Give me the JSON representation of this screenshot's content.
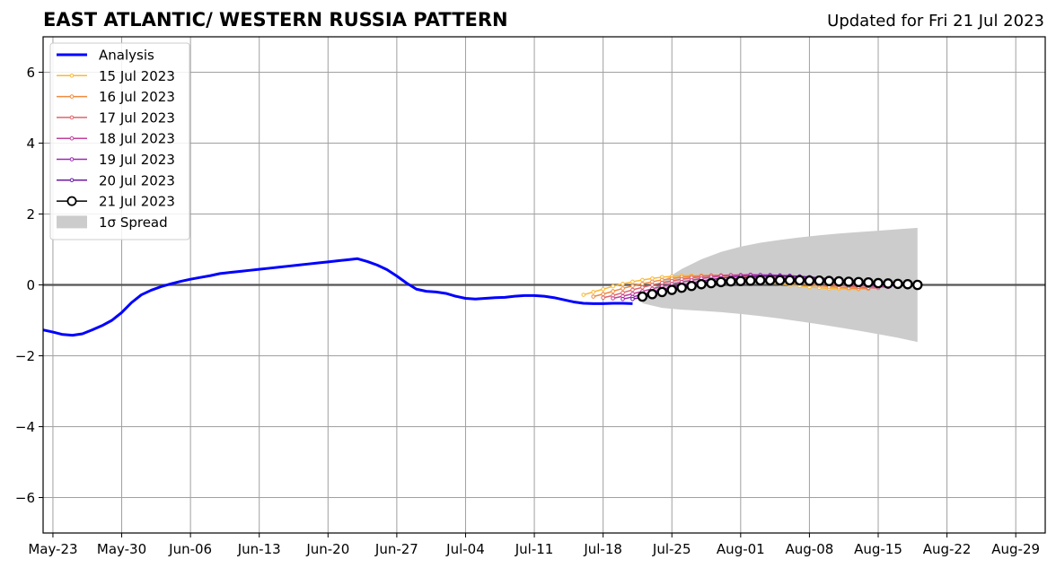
{
  "chart_data": {
    "type": "line",
    "title": "EAST ATLANTIC/ WESTERN RUSSIA PATTERN",
    "subtitle": "Updated for Fri 21 Jul 2023",
    "xlabel": "",
    "ylabel": "",
    "xlim": [
      "2023-05-22",
      "2023-09-01"
    ],
    "ylim": [
      -7,
      7
    ],
    "grid": true,
    "legend_position": "upper-left",
    "x_tick_labels": [
      "May-23",
      "May-30",
      "Jun-06",
      "Jun-13",
      "Jun-20",
      "Jun-27",
      "Jul-04",
      "Jul-11",
      "Jul-18",
      "Jul-25",
      "Aug-01",
      "Aug-08",
      "Aug-15",
      "Aug-22",
      "Aug-29"
    ],
    "x_tick_dates": [
      "2023-05-23",
      "2023-05-30",
      "2023-06-06",
      "2023-06-13",
      "2023-06-20",
      "2023-06-27",
      "2023-07-04",
      "2023-07-11",
      "2023-07-18",
      "2023-07-25",
      "2023-08-01",
      "2023-08-08",
      "2023-08-15",
      "2023-08-22",
      "2023-08-29"
    ],
    "y_ticks": [
      -6,
      -4,
      -2,
      0,
      2,
      4,
      6
    ],
    "y_tick_labels": [
      "−6",
      "−4",
      "−2",
      "0",
      "2",
      "4",
      "6"
    ],
    "legend": [
      {
        "label": "Analysis",
        "kind": "analysis"
      },
      {
        "label": "15 Jul 2023",
        "kind": "forecast",
        "color": "#f9b938"
      },
      {
        "label": "16 Jul 2023",
        "kind": "forecast",
        "color": "#f08a3e"
      },
      {
        "label": "17 Jul 2023",
        "kind": "forecast",
        "color": "#e0656a"
      },
      {
        "label": "18 Jul 2023",
        "kind": "forecast",
        "color": "#c2409a"
      },
      {
        "label": "19 Jul 2023",
        "kind": "forecast",
        "color": "#9a28b0"
      },
      {
        "label": "20 Jul 2023",
        "kind": "forecast",
        "color": "#6a1aa0"
      },
      {
        "label": "21 Jul 2023",
        "kind": "latest"
      },
      {
        "label": "1σ Spread",
        "kind": "spread"
      }
    ],
    "analysis": {
      "name": "Analysis",
      "color": "#0000ff",
      "x": [
        "2023-05-22",
        "2023-05-23",
        "2023-05-24",
        "2023-05-25",
        "2023-05-26",
        "2023-05-27",
        "2023-05-28",
        "2023-05-29",
        "2023-05-30",
        "2023-05-31",
        "2023-06-01",
        "2023-06-02",
        "2023-06-03",
        "2023-06-04",
        "2023-06-05",
        "2023-06-06",
        "2023-06-07",
        "2023-06-08",
        "2023-06-09",
        "2023-06-10",
        "2023-06-11",
        "2023-06-12",
        "2023-06-13",
        "2023-06-14",
        "2023-06-15",
        "2023-06-16",
        "2023-06-17",
        "2023-06-18",
        "2023-06-19",
        "2023-06-20",
        "2023-06-21",
        "2023-06-22",
        "2023-06-23",
        "2023-06-24",
        "2023-06-25",
        "2023-06-26",
        "2023-06-27",
        "2023-06-28",
        "2023-06-29",
        "2023-06-30",
        "2023-07-01",
        "2023-07-02",
        "2023-07-03",
        "2023-07-04",
        "2023-07-05",
        "2023-07-06",
        "2023-07-07",
        "2023-07-08",
        "2023-07-09",
        "2023-07-10",
        "2023-07-11",
        "2023-07-12",
        "2023-07-13",
        "2023-07-14",
        "2023-07-15",
        "2023-07-16",
        "2023-07-17",
        "2023-07-18",
        "2023-07-19",
        "2023-07-20",
        "2023-07-21"
      ],
      "y": [
        -1.27,
        -1.33,
        -1.4,
        -1.42,
        -1.38,
        -1.27,
        -1.15,
        -1.0,
        -0.78,
        -0.5,
        -0.28,
        -0.15,
        -0.05,
        0.03,
        0.1,
        0.16,
        0.21,
        0.26,
        0.32,
        0.35,
        0.38,
        0.41,
        0.44,
        0.47,
        0.5,
        0.53,
        0.56,
        0.59,
        0.62,
        0.65,
        0.68,
        0.71,
        0.74,
        0.66,
        0.56,
        0.43,
        0.25,
        0.05,
        -0.12,
        -0.18,
        -0.2,
        -0.24,
        -0.32,
        -0.38,
        -0.4,
        -0.38,
        -0.36,
        -0.35,
        -0.32,
        -0.3,
        -0.3,
        -0.32,
        -0.36,
        -0.42,
        -0.48,
        -0.52,
        -0.53,
        -0.53,
        -0.52,
        -0.52,
        -0.53
      ]
    },
    "forecasts": [
      {
        "name": "15 Jul 2023",
        "color": "#f9b938",
        "start": "2023-07-16",
        "y": [
          -0.28,
          -0.2,
          -0.12,
          -0.04,
          0.03,
          0.09,
          0.14,
          0.18,
          0.22,
          0.24,
          0.26,
          0.26,
          0.26,
          0.25,
          0.23,
          0.21,
          0.18,
          0.14,
          0.1,
          0.06,
          0.03,
          0.0,
          -0.03,
          -0.06,
          -0.08,
          -0.1,
          -0.11,
          -0.12,
          -0.13
        ]
      },
      {
        "name": "16 Jul 2023",
        "color": "#f08a3e",
        "start": "2023-07-17",
        "y": [
          -0.33,
          -0.26,
          -0.18,
          -0.1,
          -0.03,
          0.03,
          0.09,
          0.14,
          0.18,
          0.22,
          0.24,
          0.26,
          0.27,
          0.27,
          0.26,
          0.24,
          0.22,
          0.19,
          0.16,
          0.12,
          0.08,
          0.04,
          0.01,
          -0.02,
          -0.05,
          -0.07,
          -0.09,
          -0.1,
          -0.11
        ]
      },
      {
        "name": "17 Jul 2023",
        "color": "#e0656a",
        "start": "2023-07-18",
        "y": [
          -0.36,
          -0.3,
          -0.22,
          -0.14,
          -0.07,
          0.0,
          0.06,
          0.11,
          0.16,
          0.2,
          0.23,
          0.26,
          0.27,
          0.28,
          0.28,
          0.27,
          0.25,
          0.23,
          0.2,
          0.16,
          0.13,
          0.09,
          0.05,
          0.02,
          -0.01,
          -0.04,
          -0.06,
          -0.08,
          -0.09
        ]
      },
      {
        "name": "18 Jul 2023",
        "color": "#c2409a",
        "start": "2023-07-19",
        "y": [
          -0.38,
          -0.32,
          -0.25,
          -0.18,
          -0.11,
          -0.04,
          0.02,
          0.08,
          0.13,
          0.18,
          0.22,
          0.25,
          0.27,
          0.28,
          0.29,
          0.28,
          0.27,
          0.25,
          0.22,
          0.19,
          0.16,
          0.12,
          0.09,
          0.05,
          0.02,
          -0.01,
          -0.03,
          -0.05,
          -0.06
        ]
      },
      {
        "name": "19 Jul 2023",
        "color": "#9a28b0",
        "start": "2023-07-20",
        "y": [
          -0.4,
          -0.34,
          -0.27,
          -0.2,
          -0.13,
          -0.07,
          -0.01,
          0.05,
          0.1,
          0.15,
          0.19,
          0.22,
          0.25,
          0.27,
          0.28,
          0.28,
          0.27,
          0.26,
          0.24,
          0.21,
          0.18,
          0.15,
          0.12,
          0.08,
          0.05,
          0.02,
          0.0,
          -0.02,
          -0.03
        ]
      },
      {
        "name": "20 Jul 2023",
        "color": "#6a1aa0",
        "start": "2023-07-21",
        "y": [
          -0.4,
          -0.35,
          -0.29,
          -0.22,
          -0.16,
          -0.1,
          -0.04,
          0.02,
          0.07,
          0.12,
          0.16,
          0.19,
          0.22,
          0.24,
          0.25,
          0.25,
          0.25,
          0.24,
          0.22,
          0.2,
          0.17,
          0.14,
          0.11,
          0.08,
          0.05,
          0.03,
          0.01,
          -0.01,
          -0.02
        ]
      }
    ],
    "latest": {
      "name": "21 Jul 2023",
      "start": "2023-07-22",
      "y": [
        -0.33,
        -0.26,
        -0.2,
        -0.14,
        -0.08,
        -0.03,
        0.02,
        0.05,
        0.08,
        0.1,
        0.11,
        0.12,
        0.13,
        0.13,
        0.13,
        0.13,
        0.13,
        0.12,
        0.12,
        0.11,
        0.1,
        0.09,
        0.08,
        0.07,
        0.05,
        0.04,
        0.03,
        0.02,
        0.0
      ]
    },
    "spread": {
      "name": "1σ Spread",
      "color": "#cccccc",
      "x": [
        "2023-07-22",
        "2023-07-24",
        "2023-07-26",
        "2023-07-28",
        "2023-07-30",
        "2023-08-01",
        "2023-08-03",
        "2023-08-05",
        "2023-08-07",
        "2023-08-09",
        "2023-08-11",
        "2023-08-13",
        "2023-08-15",
        "2023-08-17",
        "2023-08-19"
      ],
      "upper": [
        -0.35,
        0.1,
        0.45,
        0.72,
        0.93,
        1.08,
        1.19,
        1.27,
        1.34,
        1.4,
        1.45,
        1.49,
        1.53,
        1.57,
        1.61
      ],
      "lower": [
        -0.52,
        -0.65,
        -0.7,
        -0.73,
        -0.77,
        -0.82,
        -0.88,
        -0.95,
        -1.03,
        -1.11,
        -1.2,
        -1.29,
        -1.39,
        -1.49,
        -1.61
      ]
    }
  }
}
